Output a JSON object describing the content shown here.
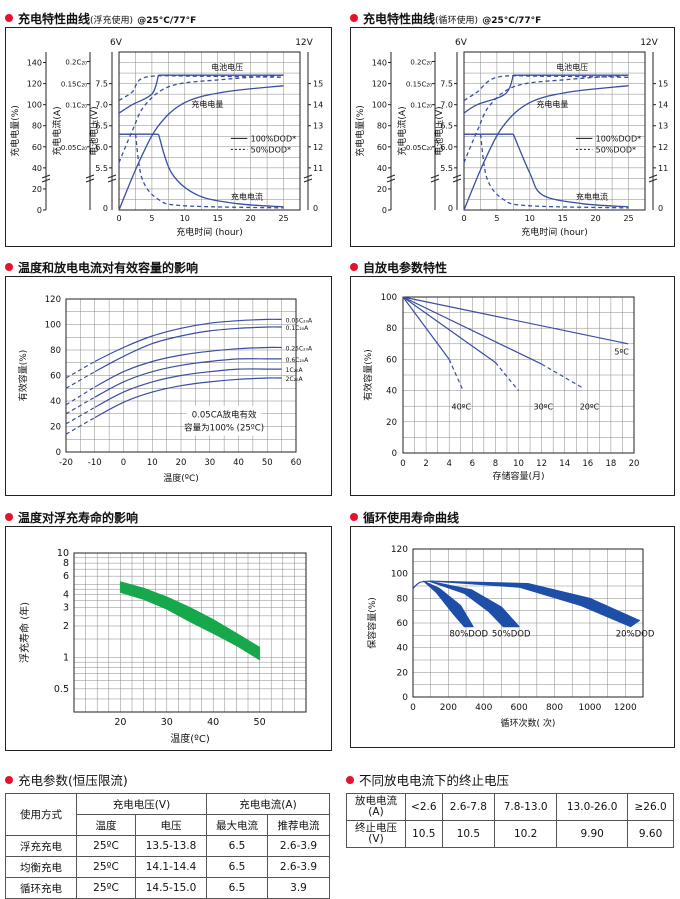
{
  "titles": {
    "p1": "充电特性曲线",
    "p1_sub": "(浮充使用)",
    "p1_cond": "@25°C/77°F",
    "p2": "充电特性曲线",
    "p2_sub": "(循环使用)",
    "p2_cond": "@25°C/77°F",
    "p3": "温度和放电电流对有效容量的影响",
    "p4": "自放电参数特性",
    "p5": "温度对浮充寿命的影响",
    "p6": "循环使用寿命曲线",
    "t1": "充电参数(恒压限流)",
    "t2": "不同放电电流下的终止电压"
  },
  "colors": {
    "curve": "#3a4fa0",
    "band": "#1e4fa8",
    "life_band": "#16a84a",
    "dot": "#e8112d"
  },
  "chart_data": [
    {
      "id": "charge-float",
      "type": "line",
      "xlabel": "充电时间 (hour)",
      "x_ticks": [
        0,
        5,
        10,
        15,
        20,
        25
      ],
      "axis_labels": {
        "charge_capacity": "充电电量(%)",
        "charge_current": "充电电流(A)",
        "voltage": "电池电压(V)",
        "v6": "6V",
        "v12": "12V"
      },
      "capacity_ticks": [
        0,
        20,
        40,
        60,
        80,
        100,
        120,
        140
      ],
      "current_ticks": [
        "0.05C₂₀",
        "0.1C₂₀",
        "0.15C₂₀",
        "0.2C₂₀"
      ],
      "v6_ticks": [
        5.5,
        6.0,
        6.5,
        7.0,
        7.5
      ],
      "v12_ticks": [
        11,
        12,
        13,
        14,
        15
      ],
      "bottom_zero": "0",
      "legend": [
        {
          "style": "solid",
          "label": "100%DOD*"
        },
        {
          "style": "dashed",
          "label": "50%DOD*"
        }
      ],
      "labels": {
        "voltage": "电池电压",
        "capacity": "充电电量",
        "current": "充电电流"
      }
    },
    {
      "id": "charge-cycle",
      "type": "line",
      "xlabel": "充电时间 (hour)",
      "x_ticks": [
        0,
        5,
        10,
        15,
        20,
        25
      ],
      "axis_labels": {
        "charge_capacity": "充电电量(%)",
        "charge_current": "充电电流(A)",
        "voltage": "电池电压(V)",
        "v6": "6V",
        "v12": "12V"
      },
      "capacity_ticks": [
        0,
        20,
        40,
        60,
        80,
        100,
        120,
        140
      ],
      "current_ticks": [
        "0.05C₂₀",
        "0.1C₂₀",
        "0.15C₂₀",
        "0.2C₂₀"
      ],
      "v6_ticks": [
        5.5,
        6.0,
        6.5,
        7.0,
        7.5
      ],
      "v12_ticks": [
        11,
        12,
        13,
        14,
        15
      ],
      "bottom_zero": "0",
      "legend": [
        {
          "style": "solid",
          "label": "100%DOD*"
        },
        {
          "style": "dashed",
          "label": "50%DOD*"
        }
      ],
      "labels": {
        "voltage": "电池电压",
        "capacity": "充电电量",
        "current": "充电电流"
      }
    },
    {
      "id": "temp-capacity",
      "type": "line",
      "xlabel": "温度(ºC)",
      "ylabel": "有效容量(%)",
      "xlim": [
        -20,
        60
      ],
      "ylim": [
        0,
        120
      ],
      "x_ticks": [
        -20,
        -10,
        0,
        10,
        20,
        30,
        40,
        50,
        60
      ],
      "y_ticks": [
        0,
        20,
        40,
        60,
        80,
        100,
        120
      ],
      "note": [
        "0.05CA放电有效",
        "容量为100% (25ºC)"
      ],
      "series": [
        {
          "name": "0.05C₂₀A",
          "x": [
            -20,
            -10,
            0,
            10,
            20,
            30,
            40,
            50,
            55
          ],
          "y": [
            58,
            71,
            82,
            91,
            97,
            101,
            103,
            104,
            104
          ]
        },
        {
          "name": "0.1C₂₀A",
          "x": [
            -20,
            -10,
            0,
            10,
            20,
            30,
            40,
            50,
            55
          ],
          "y": [
            50,
            63,
            75,
            85,
            91,
            95,
            97,
            98,
            98
          ]
        },
        {
          "name": "0.25C₂₀A",
          "x": [
            -20,
            -10,
            0,
            10,
            20,
            30,
            40,
            50,
            55
          ],
          "y": [
            37,
            51,
            63,
            71,
            76,
            79,
            81,
            82,
            82
          ]
        },
        {
          "name": "0.6C₂₀A",
          "x": [
            -20,
            -10,
            0,
            10,
            20,
            30,
            40,
            50,
            55
          ],
          "y": [
            30,
            43,
            55,
            63,
            68,
            71,
            73,
            73,
            73
          ]
        },
        {
          "name": "1C₂₀A",
          "x": [
            -20,
            -10,
            0,
            10,
            20,
            30,
            40,
            50,
            55
          ],
          "y": [
            22,
            35,
            47,
            55,
            60,
            63,
            65,
            65,
            65
          ]
        },
        {
          "name": "2C₂₀A",
          "x": [
            -20,
            -10,
            0,
            10,
            20,
            30,
            40,
            50,
            55
          ],
          "y": [
            14,
            27,
            39,
            47,
            52,
            55,
            57,
            58,
            58
          ]
        }
      ]
    },
    {
      "id": "self-discharge",
      "type": "line",
      "xlabel": "存储容量(月)",
      "ylabel": "有效容量(%)",
      "xlim": [
        0,
        20
      ],
      "ylim": [
        0,
        100
      ],
      "x_ticks": [
        0,
        2,
        4,
        6,
        8,
        10,
        12,
        14,
        16,
        18,
        20
      ],
      "y_ticks": [
        0,
        20,
        40,
        60,
        80,
        100
      ],
      "series": [
        {
          "name": "40ºC",
          "x": [
            0,
            4,
            5.2
          ],
          "y": [
            100,
            60,
            40
          ]
        },
        {
          "name": "30ºC",
          "x": [
            0,
            8,
            10
          ],
          "y": [
            100,
            58,
            40
          ]
        },
        {
          "name": "20ºC",
          "x": [
            0,
            12,
            15.5
          ],
          "y": [
            100,
            57,
            42
          ]
        },
        {
          "name": "5ºC",
          "x": [
            0,
            19.5
          ],
          "y": [
            100,
            70
          ]
        }
      ]
    },
    {
      "id": "float-life",
      "type": "area",
      "scale": "log",
      "xlabel": "温度(ºC)",
      "ylabel": "浮充寿命 (年)",
      "xlim": [
        10,
        60
      ],
      "ylim": [
        0.3,
        10
      ],
      "x_ticks": [
        20,
        30,
        40,
        50
      ],
      "y_tick_labels": [
        0.5,
        1,
        2,
        3,
        4,
        6,
        8,
        10
      ],
      "band": {
        "x": [
          20,
          25,
          30,
          35,
          40,
          45,
          50
        ],
        "upper": [
          5.3,
          4.6,
          3.8,
          3.0,
          2.3,
          1.7,
          1.25
        ],
        "lower": [
          4.2,
          3.6,
          2.9,
          2.2,
          1.7,
          1.3,
          0.95
        ]
      }
    },
    {
      "id": "cycle-life",
      "type": "area",
      "xlabel": "循环次数( 次)",
      "ylabel": "保容容量(%)",
      "xlim": [
        0,
        1300
      ],
      "ylim": [
        0,
        120
      ],
      "x_ticks": [
        0,
        200,
        400,
        600,
        800,
        1000,
        1200
      ],
      "y_ticks": [
        0,
        20,
        40,
        60,
        80,
        100,
        120
      ],
      "series": [
        {
          "name": "80%DOD",
          "upper": [
            [
              60,
              94
            ],
            [
              150,
              88
            ],
            [
              270,
              74
            ],
            [
              340,
              57
            ]
          ],
          "lower": [
            [
              60,
              94
            ],
            [
              130,
              85
            ],
            [
              230,
              67
            ],
            [
              290,
              57
            ]
          ]
        },
        {
          "name": "50%DOD",
          "upper": [
            [
              90,
              94
            ],
            [
              330,
              87
            ],
            [
              500,
              73
            ],
            [
              600,
              57
            ]
          ],
          "lower": [
            [
              90,
              94
            ],
            [
              290,
              84
            ],
            [
              430,
              69
            ],
            [
              510,
              57
            ]
          ]
        },
        {
          "name": "20%DOD",
          "upper": [
            [
              110,
              94
            ],
            [
              650,
              92
            ],
            [
              1000,
              80
            ],
            [
              1280,
              62
            ]
          ],
          "lower": [
            [
              110,
              94
            ],
            [
              600,
              89
            ],
            [
              950,
              74
            ],
            [
              1230,
              57
            ]
          ]
        }
      ]
    }
  ],
  "table_charge": {
    "head1": [
      "使用方式",
      "充电电压(V)",
      "充电电流(A)"
    ],
    "head2": [
      "温度",
      "电压",
      "最大电流",
      "推荐电流"
    ],
    "rows": [
      [
        "浮充充电",
        "25ºC",
        "13.5-13.8",
        "6.5",
        "2.6-3.9"
      ],
      [
        "均衡充电",
        "25ºC",
        "14.1-14.4",
        "6.5",
        "2.6-3.9"
      ],
      [
        "循环充电",
        "25ºC",
        "14.5-15.0",
        "6.5",
        "3.9"
      ]
    ]
  },
  "table_voltage": {
    "row1_head": [
      "放电电流",
      "(A)"
    ],
    "row1": [
      "<2.6",
      "2.6-7.8",
      "7.8-13.0",
      "13.0-26.0",
      "≥26.0"
    ],
    "row2_head": [
      "终止电压",
      "(V)"
    ],
    "row2": [
      "10.5",
      "10.5",
      "10.2",
      "9.90",
      "9.60"
    ]
  }
}
